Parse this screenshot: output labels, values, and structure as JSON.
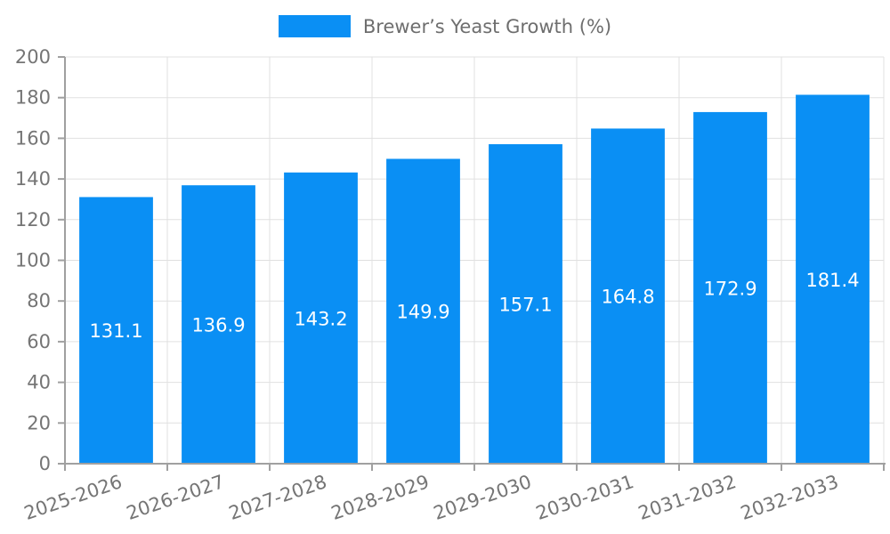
{
  "legend": {
    "label": "Brewer’s Yeast Growth (%)"
  },
  "chart_data": {
    "type": "bar",
    "title": "Brewer’s Yeast Growth (%)",
    "categories": [
      "2025-2026",
      "2026-2027",
      "2027-2028",
      "2028-2029",
      "2029-2030",
      "2030-2031",
      "2031-2032",
      "2032-2033"
    ],
    "values": [
      131.1,
      136.9,
      143.2,
      149.9,
      157.1,
      164.8,
      172.9,
      181.4
    ],
    "value_labels": [
      "131.1",
      "136.9",
      "143.2",
      "149.9",
      "157.1",
      "164.8",
      "172.9",
      "181.4"
    ],
    "xlabel": "",
    "ylabel": "",
    "ylim": [
      0,
      200
    ],
    "yticks": [
      0,
      20,
      40,
      60,
      80,
      100,
      120,
      140,
      160,
      180,
      200
    ],
    "grid": true,
    "legend_position": "top-center",
    "x_label_rotation_deg": -19,
    "bar_color": "#0a8ff4",
    "value_label_color": "#ffffff",
    "axis_color": "#a0a0a0",
    "grid_color": "#e0e0e0",
    "tick_label_color": "#757575"
  }
}
